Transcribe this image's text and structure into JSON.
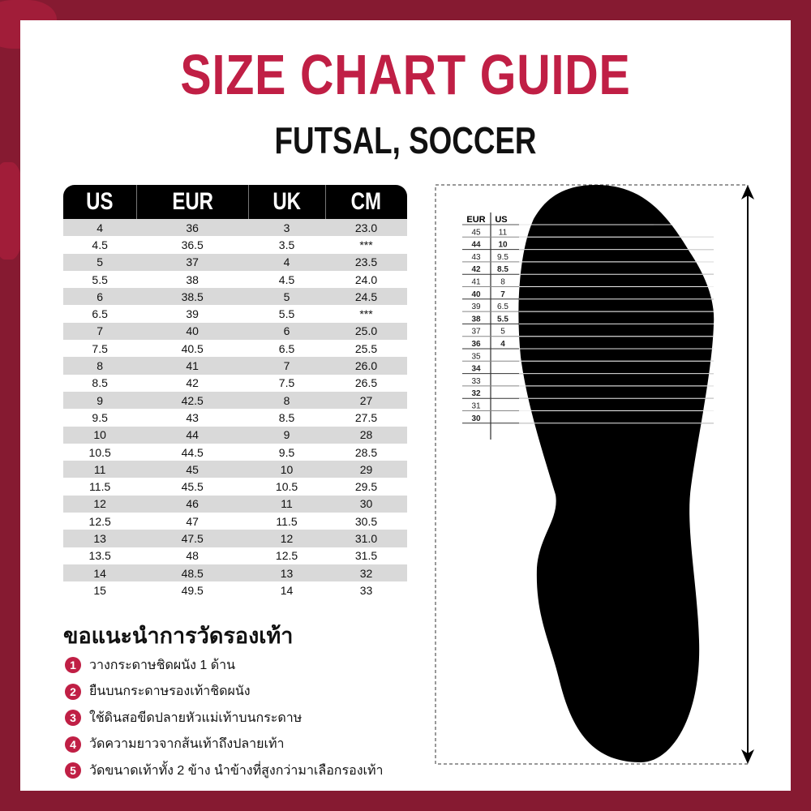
{
  "title": "SIZE CHART GUIDE",
  "subtitle": "FUTSAL, SOCCER",
  "colors": {
    "border": "#861a31",
    "accent": "#c01f45",
    "header": "#000000",
    "stripe": "#d9d9d9"
  },
  "table": {
    "headers": [
      "US",
      "EUR",
      "UK",
      "CM"
    ],
    "rows": [
      [
        "4",
        "36",
        "3",
        "23.0"
      ],
      [
        "4.5",
        "36.5",
        "3.5",
        "***"
      ],
      [
        "5",
        "37",
        "4",
        "23.5"
      ],
      [
        "5.5",
        "38",
        "4.5",
        "24.0"
      ],
      [
        "6",
        "38.5",
        "5",
        "24.5"
      ],
      [
        "6.5",
        "39",
        "5.5",
        "***"
      ],
      [
        "7",
        "40",
        "6",
        "25.0"
      ],
      [
        "7.5",
        "40.5",
        "6.5",
        "25.5"
      ],
      [
        "8",
        "41",
        "7",
        "26.0"
      ],
      [
        "8.5",
        "42",
        "7.5",
        "26.5"
      ],
      [
        "9",
        "42.5",
        "8",
        "27"
      ],
      [
        "9.5",
        "43",
        "8.5",
        "27.5"
      ],
      [
        "10",
        "44",
        "9",
        "28"
      ],
      [
        "10.5",
        "44.5",
        "9.5",
        "28.5"
      ],
      [
        "11",
        "45",
        "10",
        "29"
      ],
      [
        "11.5",
        "45.5",
        "10.5",
        "29.5"
      ],
      [
        "12",
        "46",
        "11",
        "30"
      ],
      [
        "12.5",
        "47",
        "11.5",
        "30.5"
      ],
      [
        "13",
        "47.5",
        "12",
        "31.0"
      ],
      [
        "13.5",
        "48",
        "12.5",
        "31.5"
      ],
      [
        "14",
        "48.5",
        "13",
        "32"
      ],
      [
        "15",
        "49.5",
        "14",
        "33"
      ]
    ]
  },
  "tips": {
    "title": "ขอแนะนำการวัดรองเท้า",
    "items": [
      {
        "n": "1",
        "text": "วางกระดาษชิดผนัง 1 ด้าน"
      },
      {
        "n": "2",
        "text": "ยืนบนกระดาษรองเท้าชิดผนัง"
      },
      {
        "n": "3",
        "text": "ใช้ดินสอขีดปลายหัวแม่เท้าบนกระดาษ"
      },
      {
        "n": "4",
        "text": "วัดความยาวจากส้นเท้าถึงปลายเท้า"
      },
      {
        "n": "5",
        "text": "วัดขนาดเท้าทั้ง 2 ข้าง นำข้างที่สูงกว่ามาเลือกรองเท้า"
      }
    ]
  },
  "ruler": {
    "headers": [
      "EUR",
      "US"
    ],
    "rows": [
      [
        "45",
        "11"
      ],
      [
        "44",
        "10"
      ],
      [
        "43",
        "9.5"
      ],
      [
        "42",
        "8.5"
      ],
      [
        "41",
        "8"
      ],
      [
        "40",
        "7"
      ],
      [
        "39",
        "6.5"
      ],
      [
        "38",
        "5.5"
      ],
      [
        "37",
        "5"
      ],
      [
        "36",
        "4"
      ],
      [
        "35",
        ""
      ],
      [
        "34",
        ""
      ],
      [
        "33",
        ""
      ],
      [
        "32",
        ""
      ],
      [
        "31",
        ""
      ],
      [
        "30",
        ""
      ]
    ],
    "bold_eur": [
      "44",
      "42",
      "40",
      "38",
      "36",
      "34",
      "32",
      "30"
    ]
  }
}
